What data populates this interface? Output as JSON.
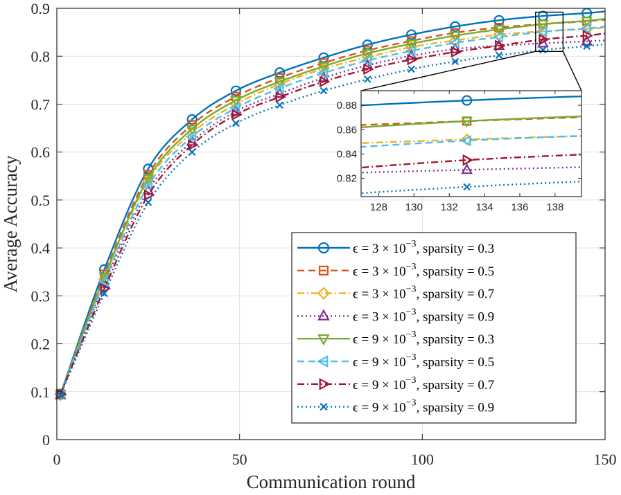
{
  "chart_data": {
    "type": "line",
    "xlabel": "Communication round",
    "ylabel": "Average Accuracy",
    "xlim": [
      0,
      150
    ],
    "ylim": [
      0,
      0.9
    ],
    "xticks": [
      0,
      50,
      100,
      150
    ],
    "yticks": [
      0,
      0.1,
      0.2,
      0.3,
      0.4,
      0.5,
      0.6,
      0.7,
      0.8,
      0.9
    ],
    "grid": true,
    "legend_position": "bottom-right",
    "marker_x": [
      1,
      13,
      25,
      37,
      49,
      61,
      73,
      85,
      97,
      109,
      121,
      133,
      145
    ],
    "series": [
      {
        "name": "ε = 3 × 10⁻³, sparsity = 0.3",
        "legend_eps": "ϵ = 3 × 10",
        "legend_exp": "−3",
        "legend_rest": ", sparsity = 0.3",
        "color": "#0072BD",
        "dash": "",
        "marker": "circle",
        "values": [
          0.095,
          0.355,
          0.565,
          0.668,
          0.728,
          0.766,
          0.797,
          0.824,
          0.845,
          0.862,
          0.875,
          0.884,
          0.89
        ]
      },
      {
        "name": "ε = 3 × 10⁻³, sparsity = 0.5",
        "legend_eps": "ϵ = 3 × 10",
        "legend_exp": "−3",
        "legend_rest": ", sparsity = 0.5",
        "color": "#D95319",
        "dash": "10,6",
        "marker": "square",
        "values": [
          0.095,
          0.345,
          0.553,
          0.657,
          0.716,
          0.755,
          0.786,
          0.812,
          0.832,
          0.849,
          0.86,
          0.867,
          0.873
        ]
      },
      {
        "name": "ε = 3 × 10⁻³, sparsity = 0.7",
        "legend_eps": "ϵ = 3 × 10",
        "legend_exp": "−3",
        "legend_rest": ", sparsity = 0.7",
        "color": "#EDB120",
        "dash": "10,4,2,4",
        "marker": "diamond",
        "values": [
          0.093,
          0.335,
          0.54,
          0.64,
          0.7,
          0.742,
          0.774,
          0.798,
          0.819,
          0.833,
          0.845,
          0.852,
          0.857
        ]
      },
      {
        "name": "ε = 3 × 10⁻³, sparsity = 0.9",
        "legend_eps": "ϵ = 3 × 10",
        "legend_exp": "−3",
        "legend_rest": ", sparsity = 0.9",
        "color": "#7E2F8E",
        "dash": "2,4",
        "marker": "triangle-up",
        "values": [
          0.093,
          0.325,
          0.52,
          0.622,
          0.685,
          0.722,
          0.755,
          0.781,
          0.801,
          0.815,
          0.822,
          0.827,
          0.831
        ]
      },
      {
        "name": "ε = 9 × 10⁻³, sparsity = 0.3",
        "legend_eps": "ϵ = 9 × 10",
        "legend_exp": "−3",
        "legend_rest": ", sparsity = 0.3",
        "color": "#77AC30",
        "dash": "",
        "marker": "triangle-down",
        "values": [
          0.095,
          0.34,
          0.545,
          0.648,
          0.708,
          0.747,
          0.779,
          0.806,
          0.826,
          0.843,
          0.856,
          0.867,
          0.874
        ]
      },
      {
        "name": "ε = 9 × 10⁻³, sparsity = 0.5",
        "legend_eps": "ϵ = 9 × 10",
        "legend_exp": "−3",
        "legend_rest": ", sparsity = 0.5",
        "color": "#4DBEEE",
        "dash": "10,6",
        "marker": "triangle-left",
        "values": [
          0.095,
          0.33,
          0.53,
          0.632,
          0.692,
          0.733,
          0.765,
          0.791,
          0.811,
          0.828,
          0.84,
          0.851,
          0.858
        ]
      },
      {
        "name": "ε = 9 × 10⁻³, sparsity = 0.7",
        "legend_eps": "ϵ = 9 × 10",
        "legend_exp": "−3",
        "legend_rest": ", sparsity = 0.7",
        "color": "#A2142F",
        "dash": "10,4,2,4",
        "marker": "triangle-right",
        "values": [
          0.095,
          0.315,
          0.51,
          0.615,
          0.678,
          0.715,
          0.747,
          0.773,
          0.793,
          0.809,
          0.822,
          0.835,
          0.843
        ]
      },
      {
        "name": "ε = 9 × 10⁻³, sparsity = 0.9",
        "legend_eps": "ϵ = 9 × 10",
        "legend_exp": "−3",
        "legend_rest": ", sparsity = 0.9",
        "color": "#0072BD",
        "dash": "2,4",
        "marker": "x",
        "values": [
          0.093,
          0.305,
          0.495,
          0.6,
          0.66,
          0.698,
          0.728,
          0.752,
          0.773,
          0.789,
          0.802,
          0.813,
          0.821
        ]
      }
    ],
    "inset": {
      "xlim": [
        127,
        139.5
      ],
      "ylim": [
        0.805,
        0.892
      ],
      "xticks": [
        128,
        130,
        132,
        134,
        136,
        138
      ],
      "yticks": [
        0.82,
        0.84,
        0.86,
        0.88
      ],
      "zoom_region_x": [
        131,
        138.5
      ],
      "zoom_region_y": [
        0.81,
        0.892
      ]
    }
  }
}
